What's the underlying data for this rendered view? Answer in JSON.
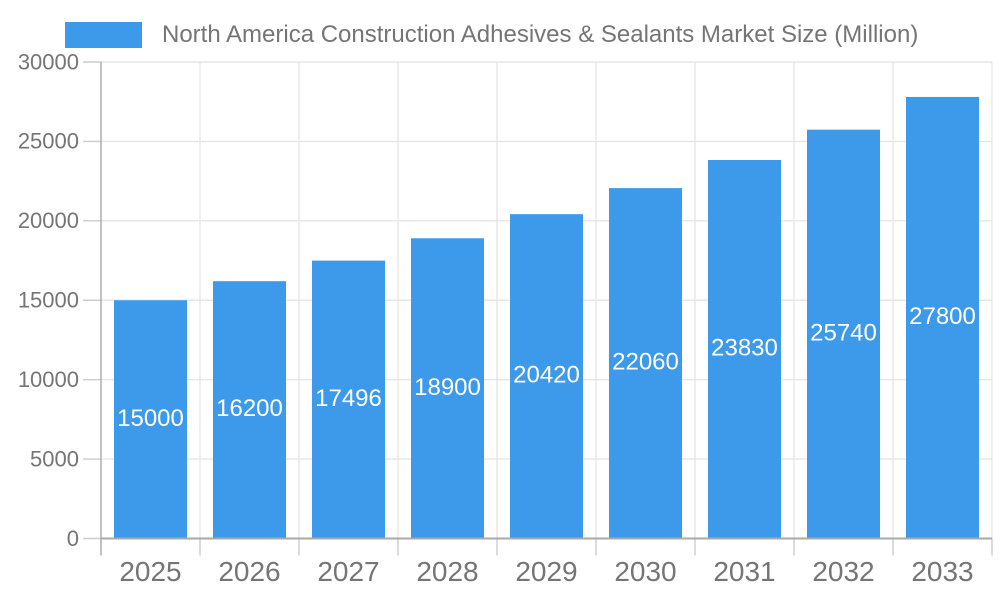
{
  "chart_data": {
    "type": "bar",
    "title": "North America Construction Adhesives & Sealants Market Size (Million)",
    "legend_position": "top",
    "categories": [
      "2025",
      "2026",
      "2027",
      "2028",
      "2029",
      "2030",
      "2031",
      "2032",
      "2033"
    ],
    "series": [
      {
        "name": "North America Construction Adhesives & Sealants Market Size (Million)",
        "values": [
          15000,
          16200,
          17496,
          18900,
          20420,
          22060,
          23830,
          25740,
          27800
        ]
      }
    ],
    "bar_value_labels_visible": true,
    "xlabel": "",
    "ylabel": "",
    "ylim": [
      0,
      30000
    ],
    "yticks": [
      0,
      5000,
      10000,
      15000,
      20000,
      25000,
      30000
    ],
    "grid": true
  },
  "colors": {
    "bar": "#3D99EA",
    "bar_label": "#FFFFFF",
    "axis_text": "#757575",
    "axis_line": "#A9A9A9",
    "tick": "#CCCCCC",
    "gridline": "#E6E6E6",
    "background": "#FFFFFF"
  }
}
